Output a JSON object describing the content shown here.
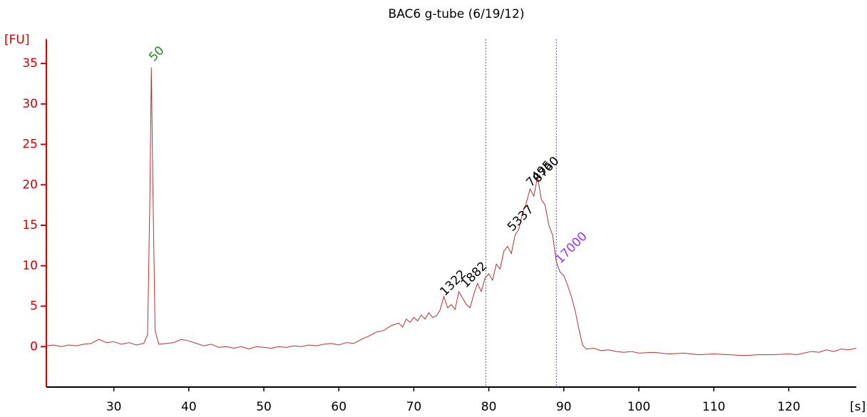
{
  "chart_data": {
    "type": "line",
    "title": "BAC6 g-tube (6/19/12)",
    "y_label": "[FU]",
    "x_label": "[s]",
    "xlim": [
      21,
      129
    ],
    "ylim": [
      -5,
      38
    ],
    "xticks": [
      30,
      40,
      50,
      60,
      70,
      80,
      90,
      100,
      110,
      120
    ],
    "yticks": [
      0,
      5,
      10,
      15,
      20,
      25,
      30,
      35
    ],
    "y_axis_color": "#d00000",
    "x_axis_color": "#000000",
    "series": [
      {
        "color": "#b83030",
        "x": [
          21,
          22,
          23,
          24,
          25,
          26,
          27,
          28,
          29,
          30,
          31,
          32,
          33,
          34,
          34.5,
          34.8,
          35,
          35.2,
          35.5,
          36,
          37,
          38,
          39,
          40,
          41,
          42,
          43,
          44,
          45,
          46,
          47,
          48,
          49,
          50,
          51,
          52,
          53,
          54,
          55,
          56,
          57,
          58,
          59,
          60,
          61,
          62,
          63,
          64,
          65,
          66,
          67,
          68,
          68.5,
          69,
          69.5,
          70,
          70.5,
          71,
          71.5,
          72,
          72.5,
          73,
          73.5,
          74,
          74.5,
          75,
          75.5,
          76,
          76.5,
          77,
          77.5,
          78,
          78.5,
          79,
          79.5,
          80,
          80.5,
          81,
          81.5,
          82,
          82.5,
          83,
          83.5,
          84,
          84.5,
          85,
          85.5,
          86,
          86.5,
          87,
          87.5,
          88,
          88.5,
          89,
          89.5,
          90,
          90.5,
          91,
          91.5,
          92,
          92.5,
          93,
          94,
          95,
          96,
          97,
          98,
          99,
          100,
          102,
          104,
          106,
          108,
          110,
          112,
          114,
          116,
          118,
          120,
          121,
          122,
          123,
          124,
          125,
          126,
          127,
          128,
          129
        ],
        "values": [
          0.1,
          0.2,
          0,
          0.2,
          0.1,
          0.3,
          0.4,
          0.9,
          0.5,
          0.6,
          0.3,
          0.5,
          0.2,
          0.4,
          1.5,
          18,
          34.5,
          20,
          2,
          0.3,
          0.4,
          0.5,
          0.9,
          0.7,
          0.4,
          0.1,
          0.3,
          -0.1,
          0,
          -0.2,
          0,
          -0.3,
          0,
          -0.1,
          -0.2,
          0,
          -0.1,
          0.1,
          0,
          0.2,
          0.1,
          0.3,
          0.4,
          0.2,
          0.5,
          0.4,
          0.9,
          1.3,
          1.8,
          2,
          2.6,
          2.9,
          2.4,
          3.4,
          3,
          3.6,
          3.2,
          3.9,
          3.4,
          4.2,
          3.6,
          3.8,
          4.5,
          6.2,
          4.8,
          5.2,
          4.6,
          6.8,
          6,
          5.2,
          4.8,
          6.5,
          7.8,
          6.8,
          8.5,
          9,
          8.2,
          10.2,
          9.6,
          11.8,
          12.4,
          11.5,
          13.8,
          14.5,
          16.5,
          17.8,
          19.5,
          18.6,
          21,
          18.2,
          17.5,
          15,
          13.8,
          10.5,
          9.2,
          8.8,
          7.6,
          6.2,
          4.5,
          2.2,
          0.2,
          -0.3,
          -0.2,
          -0.5,
          -0.4,
          -0.6,
          -0.7,
          -0.6,
          -0.8,
          -0.7,
          -0.9,
          -0.8,
          -1,
          -0.9,
          -1,
          -1.1,
          -1,
          -1,
          -0.9,
          -1,
          -0.8,
          -0.6,
          -0.7,
          -0.4,
          -0.6,
          -0.3,
          -0.4,
          -0.2
        ]
      }
    ],
    "markers_x": [
      79.6,
      89.0
    ],
    "marker_color": "#6a6ad0",
    "peaks": [
      {
        "label": "50",
        "x": 35,
        "y": 35.5,
        "color": "#228b22"
      },
      {
        "label": "1322",
        "x": 73.8,
        "y": 6.5,
        "color": "#000000"
      },
      {
        "label": "1882",
        "x": 76.6,
        "y": 7.5,
        "color": "#000000"
      },
      {
        "label": "5337",
        "x": 82.8,
        "y": 14.5,
        "color": "#000000"
      },
      {
        "label": "7495",
        "x": 85.3,
        "y": 20,
        "color": "#000000"
      },
      {
        "label": "8760",
        "x": 86.2,
        "y": 20.5,
        "color": "#000000"
      },
      {
        "label": "17000",
        "x": 89.2,
        "y": 10.5,
        "color": "#9933ff"
      }
    ]
  }
}
